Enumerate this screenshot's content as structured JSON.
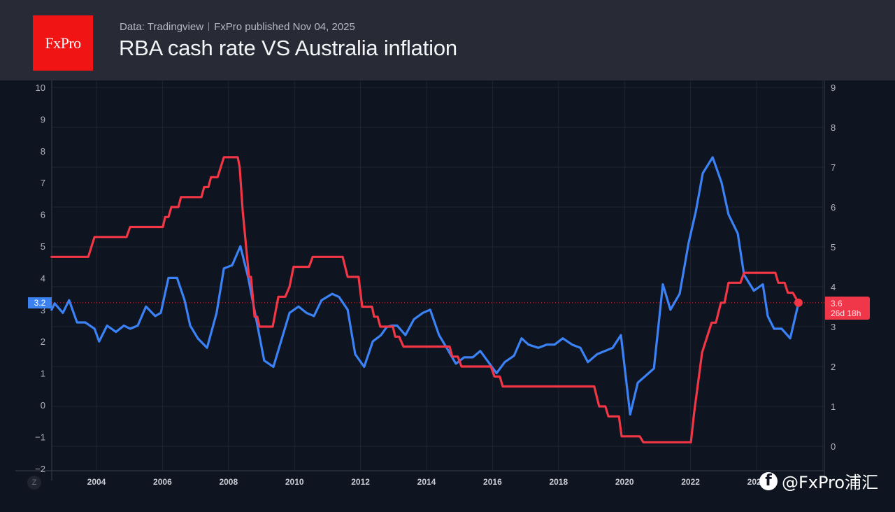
{
  "header": {
    "logo_text": "FxPro",
    "source": "Data: Tradingview",
    "published": "FxPro published Nov 04, 2025",
    "title": "RBA cash rate VS Australia inflation"
  },
  "watermark": {
    "icon": "facebook-icon",
    "text": "@FxPro浦汇"
  },
  "controls": {
    "z_button": "Z"
  },
  "colors": {
    "inflation": "#3b82f6",
    "cash_rate": "#f23645",
    "background": "#0e1420",
    "header": "#282a35",
    "logo": "#f01414"
  },
  "chart_data": {
    "type": "line",
    "title": "RBA cash rate VS Australia inflation",
    "xlabel": "",
    "x_ticks": [
      "2004",
      "2006",
      "2008",
      "2010",
      "2012",
      "2014",
      "2016",
      "2018",
      "2020",
      "2022",
      "2024"
    ],
    "left_axis": {
      "ticks": [
        "10",
        "9",
        "8",
        "7",
        "6",
        "5",
        "4",
        "3",
        "2",
        "1",
        "0",
        "−1",
        "−2"
      ],
      "ylim": [
        -2,
        10
      ],
      "series": "Australia inflation"
    },
    "right_axis": {
      "ticks": [
        "9",
        "8",
        "7",
        "6",
        "5",
        "4",
        "3",
        "2",
        "1",
        "0"
      ],
      "ylim": [
        0,
        9
      ],
      "series": "RBA cash rate"
    },
    "grid": true,
    "series": [
      {
        "name": "Australia inflation",
        "axis": "left",
        "last_value_label": "3.2",
        "points": [
          [
            2002.64,
            3.0
          ],
          [
            2002.73,
            3.2
          ],
          [
            2002.98,
            2.9
          ],
          [
            2003.17,
            3.3
          ],
          [
            2003.41,
            2.6
          ],
          [
            2003.66,
            2.6
          ],
          [
            2003.94,
            2.4
          ],
          [
            2004.08,
            2.0
          ],
          [
            2004.32,
            2.5
          ],
          [
            2004.59,
            2.3
          ],
          [
            2004.83,
            2.5
          ],
          [
            2005.02,
            2.4
          ],
          [
            2005.25,
            2.5
          ],
          [
            2005.5,
            3.1
          ],
          [
            2005.78,
            2.8
          ],
          [
            2005.95,
            2.9
          ],
          [
            2006.18,
            4.0
          ],
          [
            2006.44,
            4.0
          ],
          [
            2006.67,
            3.3
          ],
          [
            2006.84,
            2.5
          ],
          [
            2007.07,
            2.1
          ],
          [
            2007.35,
            1.8
          ],
          [
            2007.64,
            2.9
          ],
          [
            2007.86,
            4.3
          ],
          [
            2008.11,
            4.4
          ],
          [
            2008.36,
            5.0
          ],
          [
            2008.6,
            4.0
          ],
          [
            2009.08,
            1.4
          ],
          [
            2009.36,
            1.2
          ],
          [
            2009.85,
            2.9
          ],
          [
            2010.12,
            3.1
          ],
          [
            2010.36,
            2.9
          ],
          [
            2010.59,
            2.8
          ],
          [
            2010.82,
            3.3
          ],
          [
            2011.14,
            3.5
          ],
          [
            2011.35,
            3.4
          ],
          [
            2011.61,
            3.0
          ],
          [
            2011.84,
            1.6
          ],
          [
            2012.11,
            1.2
          ],
          [
            2012.37,
            2.0
          ],
          [
            2012.62,
            2.2
          ],
          [
            2012.79,
            2.45
          ],
          [
            2012.94,
            2.5
          ],
          [
            2013.11,
            2.5
          ],
          [
            2013.36,
            2.2
          ],
          [
            2013.62,
            2.7
          ],
          [
            2013.89,
            2.9
          ],
          [
            2014.11,
            3.0
          ],
          [
            2014.38,
            2.2
          ],
          [
            2014.64,
            1.75
          ],
          [
            2014.89,
            1.3
          ],
          [
            2015.14,
            1.5
          ],
          [
            2015.4,
            1.5
          ],
          [
            2015.63,
            1.7
          ],
          [
            2016.12,
            1.0
          ],
          [
            2016.37,
            1.35
          ],
          [
            2016.65,
            1.55
          ],
          [
            2016.88,
            2.1
          ],
          [
            2017.09,
            1.9
          ],
          [
            2017.39,
            1.8
          ],
          [
            2017.64,
            1.9
          ],
          [
            2017.88,
            1.9
          ],
          [
            2018.13,
            2.1
          ],
          [
            2018.41,
            1.9
          ],
          [
            2018.66,
            1.8
          ],
          [
            2018.89,
            1.35
          ],
          [
            2019.17,
            1.6
          ],
          [
            2019.64,
            1.8
          ],
          [
            2019.89,
            2.2
          ],
          [
            2020.17,
            -0.3
          ],
          [
            2020.4,
            0.7
          ],
          [
            2020.89,
            1.15
          ],
          [
            2021.16,
            3.8
          ],
          [
            2021.39,
            3.0
          ],
          [
            2021.67,
            3.5
          ],
          [
            2021.94,
            5.1
          ],
          [
            2022.16,
            6.1
          ],
          [
            2022.37,
            7.3
          ],
          [
            2022.67,
            7.8
          ],
          [
            2022.94,
            7.0
          ],
          [
            2023.15,
            6.0
          ],
          [
            2023.43,
            5.4
          ],
          [
            2023.62,
            4.1
          ],
          [
            2023.92,
            3.6
          ],
          [
            2024.19,
            3.8
          ],
          [
            2024.34,
            2.8
          ],
          [
            2024.53,
            2.4
          ],
          [
            2024.76,
            2.4
          ],
          [
            2025.02,
            2.1
          ],
          [
            2025.27,
            3.2
          ]
        ]
      },
      {
        "name": "RBA cash rate",
        "axis": "right",
        "last_value_label": "3.6",
        "countdown": "26d 18h",
        "points": [
          [
            2002.64,
            4.75
          ],
          [
            2003.75,
            4.75
          ],
          [
            2003.94,
            5.25
          ],
          [
            2004.91,
            5.25
          ],
          [
            2005.02,
            5.5
          ],
          [
            2006.01,
            5.5
          ],
          [
            2006.08,
            5.75
          ],
          [
            2006.18,
            5.75
          ],
          [
            2006.27,
            6.0
          ],
          [
            2006.48,
            6.0
          ],
          [
            2006.56,
            6.25
          ],
          [
            2007.18,
            6.25
          ],
          [
            2007.26,
            6.5
          ],
          [
            2007.39,
            6.5
          ],
          [
            2007.47,
            6.75
          ],
          [
            2007.67,
            6.75
          ],
          [
            2007.86,
            7.25
          ],
          [
            2008.28,
            7.25
          ],
          [
            2008.34,
            7.0
          ],
          [
            2008.43,
            5.9
          ],
          [
            2008.62,
            4.25
          ],
          [
            2008.68,
            4.25
          ],
          [
            2008.79,
            3.25
          ],
          [
            2008.87,
            3.25
          ],
          [
            2008.94,
            3.0
          ],
          [
            2009.34,
            3.0
          ],
          [
            2009.51,
            3.75
          ],
          [
            2009.72,
            3.75
          ],
          [
            2009.85,
            4.0
          ],
          [
            2009.97,
            4.5
          ],
          [
            2010.44,
            4.5
          ],
          [
            2010.55,
            4.75
          ],
          [
            2011.46,
            4.75
          ],
          [
            2011.61,
            4.25
          ],
          [
            2011.94,
            4.25
          ],
          [
            2012.05,
            3.5
          ],
          [
            2012.35,
            3.5
          ],
          [
            2012.41,
            3.25
          ],
          [
            2012.52,
            3.25
          ],
          [
            2012.6,
            3.0
          ],
          [
            2012.98,
            3.0
          ],
          [
            2013.05,
            2.75
          ],
          [
            2013.17,
            2.75
          ],
          [
            2013.3,
            2.5
          ],
          [
            2014.7,
            2.5
          ],
          [
            2014.78,
            2.25
          ],
          [
            2014.95,
            2.25
          ],
          [
            2015.06,
            2.0
          ],
          [
            2015.95,
            2.0
          ],
          [
            2016.06,
            1.75
          ],
          [
            2016.22,
            1.75
          ],
          [
            2016.31,
            1.5
          ],
          [
            2019.08,
            1.5
          ],
          [
            2019.23,
            1.0
          ],
          [
            2019.42,
            1.0
          ],
          [
            2019.51,
            0.75
          ],
          [
            2019.83,
            0.75
          ],
          [
            2019.91,
            0.25
          ],
          [
            2020.46,
            0.25
          ],
          [
            2020.57,
            0.1
          ],
          [
            2022.01,
            0.1
          ],
          [
            2022.11,
            0.85
          ],
          [
            2022.35,
            2.35
          ],
          [
            2022.64,
            3.1
          ],
          [
            2022.77,
            3.1
          ],
          [
            2022.92,
            3.6
          ],
          [
            2023.03,
            3.6
          ],
          [
            2023.15,
            4.1
          ],
          [
            2023.51,
            4.1
          ],
          [
            2023.62,
            4.35
          ],
          [
            2024.57,
            4.35
          ],
          [
            2024.66,
            4.1
          ],
          [
            2024.85,
            4.1
          ],
          [
            2024.95,
            3.85
          ],
          [
            2025.1,
            3.85
          ],
          [
            2025.27,
            3.6
          ]
        ]
      }
    ]
  }
}
